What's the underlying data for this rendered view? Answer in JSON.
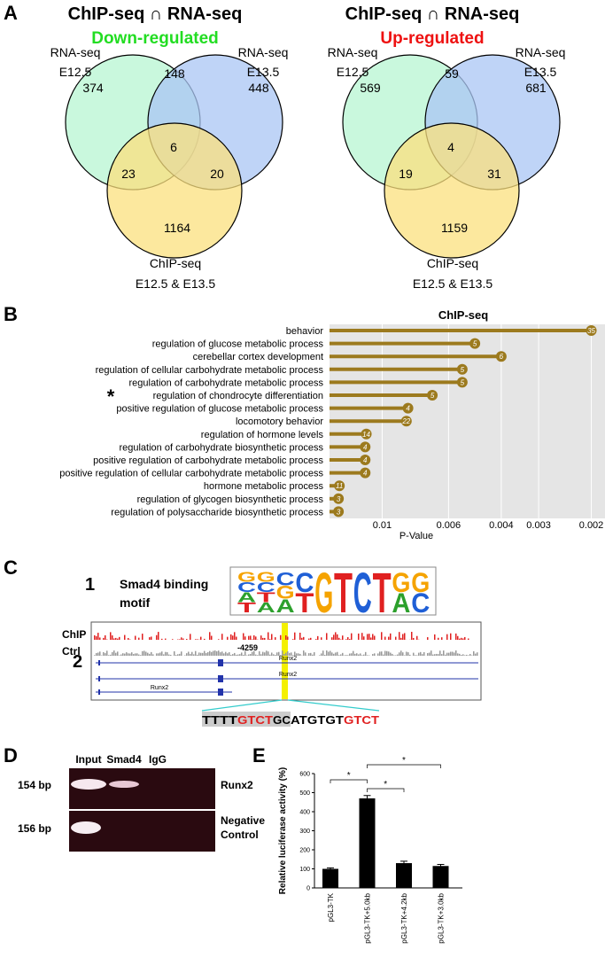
{
  "panel_labels": [
    "A",
    "B",
    "C",
    "D",
    "E"
  ],
  "venn": [
    {
      "title": "ChIP-seq ∩ RNA-seq",
      "subtitle": "Down-regulated",
      "subtitle_color": "#22dd22",
      "set_labels": [
        [
          "RNA-seq",
          "E12.5"
        ],
        [
          "RNA-seq",
          "E13.5"
        ],
        [
          "ChIP-seq",
          "E12.5 & E13.5"
        ]
      ],
      "regions": [
        374,
        148,
        448,
        6,
        23,
        20,
        1164
      ]
    },
    {
      "title": "ChIP-seq ∩ RNA-seq",
      "subtitle": "Up-regulated",
      "subtitle_color": "#ee1111",
      "set_labels": [
        [
          "RNA-seq",
          "E12.5"
        ],
        [
          "RNA-seq",
          "E13.5"
        ],
        [
          "ChIP-seq",
          "E12.5 & E13.5"
        ]
      ],
      "regions": [
        569,
        59,
        681,
        4,
        19,
        31,
        1159
      ]
    }
  ],
  "chart_data": [
    {
      "type": "lollipop",
      "title": "ChIP-seq",
      "categories": [
        "behavior",
        "regulation of glucose metabolic process",
        "cerebellar cortex development",
        "regulation of cellular carbohydrate metabolic process",
        "regulation of carbohydrate metabolic process",
        "regulation of chondrocyte differentiation",
        "positive regulation of glucose metabolic process",
        "locomotory behavior",
        "regulation of hormone levels",
        "regulation of carbohydrate biosynthetic process",
        "positive regulation of carbohydrate metabolic process",
        "positive regulation of cellular carbohydrate metabolic process",
        "hormone metabolic process",
        "regulation of glycogen biosynthetic process",
        "regulation of polysaccharide biosynthetic process"
      ],
      "values": [
        0.002,
        0.0049,
        0.004,
        0.0054,
        0.0054,
        0.0068,
        0.0082,
        0.0083,
        0.0113,
        0.0114,
        0.0114,
        0.0114,
        0.0139,
        0.014,
        0.014
      ],
      "counts": [
        35,
        5,
        6,
        5,
        5,
        5,
        4,
        22,
        14,
        4,
        4,
        4,
        11,
        3,
        3
      ],
      "xlabel": "P-Value",
      "xlim": [
        0.015,
        0.0018
      ],
      "xticks": [
        0.01,
        0.006,
        0.004,
        0.003,
        0.002
      ],
      "log_x": true,
      "color": "#9c7a1e",
      "annotation": "*"
    },
    {
      "type": "bar",
      "ylabel": "Relative luciferase activity (%)",
      "categories": [
        "pGL3-TK",
        "pGL3-TK+5.0kb",
        "pGL3-TK+4.2kb",
        "pGL3-TK+3.0kb"
      ],
      "values": [
        100,
        470,
        130,
        115
      ],
      "errors": [
        5,
        15,
        10,
        8
      ],
      "ylim": [
        0,
        600
      ],
      "yticks": [
        0,
        100,
        200,
        300,
        400,
        500,
        600
      ],
      "color": "#000000",
      "significance": [
        "*",
        "*",
        "*"
      ]
    }
  ],
  "panel_c": {
    "step1": "1",
    "motif_title": [
      "Smad4 binding",
      "motif"
    ],
    "logo": [
      [
        "G",
        "C",
        "A",
        "T"
      ],
      [
        "G",
        "C",
        "T",
        "A"
      ],
      [
        "C",
        "G",
        "A"
      ],
      [
        "C",
        "T"
      ],
      [
        "G"
      ],
      [
        "T"
      ],
      [
        "C"
      ],
      [
        "T"
      ],
      [
        "G",
        "A"
      ],
      [
        "G",
        "C"
      ]
    ],
    "step2": "2",
    "tracks": [
      "ChIP",
      "Ctrl"
    ],
    "position": "-4259",
    "genes": [
      "Runx2",
      "Runx2",
      "Runx2"
    ],
    "sequence": [
      {
        "text": "TTTT",
        "color": "#000000"
      },
      {
        "text": "GTCT",
        "color": "#e02020"
      },
      {
        "text": "GC",
        "color": "#000000"
      },
      {
        "text": "ATGTGT",
        "color": "#000000"
      },
      {
        "text": "GTCT",
        "color": "#e02020"
      }
    ]
  },
  "panel_d": {
    "lanes": [
      "Input",
      "Smad4",
      "IgG"
    ],
    "sizes": [
      "154 bp",
      "156 bp"
    ],
    "targets": [
      [
        "Runx2"
      ],
      [
        "Negative",
        "Control"
      ]
    ]
  }
}
